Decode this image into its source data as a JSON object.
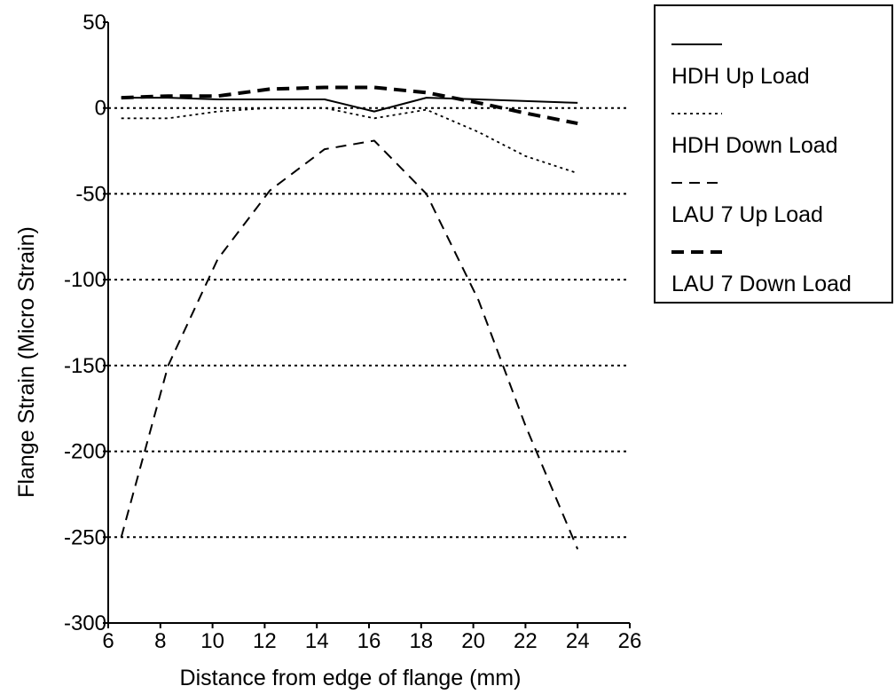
{
  "chart_data": {
    "type": "line",
    "title": "",
    "xlabel": "Distance from edge of flange (mm)",
    "ylabel": "Flange Strain (Micro Strain)",
    "xlim": [
      6,
      26
    ],
    "ylim": [
      -300,
      50
    ],
    "xticks": [
      6,
      8,
      10,
      12,
      14,
      16,
      18,
      20,
      22,
      24,
      26
    ],
    "yticks": [
      50,
      0,
      -50,
      -100,
      -150,
      -200,
      -250,
      -300
    ],
    "ytick_labels": [
      "50",
      "0",
      "-50",
      "-100",
      "-150",
      "-200",
      "-250",
      "-300"
    ],
    "grid": "dotted horizontal lines at 0, -50, -100, -150, -200, -250",
    "legend_position": "right",
    "series": [
      {
        "name": "HDH Up Load",
        "style": "solid",
        "x": [
          6.5,
          8.3,
          10.2,
          12.2,
          14.3,
          16.2,
          18.2,
          20.2,
          24.0
        ],
        "y": [
          6,
          6,
          5,
          5,
          5,
          -2,
          6,
          5,
          3
        ]
      },
      {
        "name": "HDH Down Load",
        "style": "dotted",
        "x": [
          6.5,
          8.3,
          10.2,
          12.2,
          14.3,
          16.2,
          18.2,
          20.2,
          22.0,
          24.0
        ],
        "y": [
          -6,
          -6,
          -2,
          0,
          0,
          -6,
          -1,
          -14,
          -28,
          -38
        ]
      },
      {
        "name": "LAU 7 Up Load",
        "style": "dashed",
        "x": [
          6.5,
          8.3,
          10.2,
          12.2,
          14.3,
          16.2,
          18.2,
          20.2,
          22.0,
          24.0
        ],
        "y": [
          -250,
          -150,
          -88,
          -48,
          -24,
          -19,
          -50,
          -112,
          -185,
          -257
        ]
      },
      {
        "name": "LAU 7 Down Load",
        "style": "heavy-dashed",
        "x": [
          6.5,
          8.3,
          10.2,
          12.2,
          14.3,
          16.2,
          18.2,
          20.2,
          22.0,
          24.0
        ],
        "y": [
          6,
          7,
          7,
          11,
          12,
          12,
          9,
          3,
          -3,
          -9
        ]
      }
    ]
  }
}
